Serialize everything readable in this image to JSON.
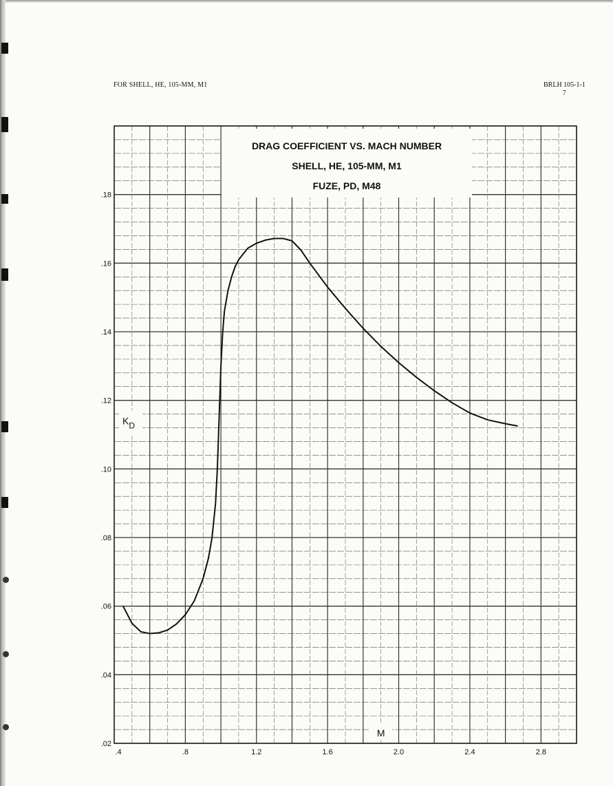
{
  "header": {
    "left": "FOR SHELL, HE, 105-MM, M1",
    "right_line1": "BRLH 105-1-1",
    "right_line2": "7"
  },
  "chart_data": {
    "type": "line",
    "title_lines": [
      "DRAG COEFFICIENT VS. MACH NUMBER",
      "SHELL, HE, 105-MM, M1",
      "FUZE, PD, M48"
    ],
    "xlabel": "M",
    "ylabel": "K",
    "ylabel_sub": "D",
    "xlim": [
      0.4,
      3.0
    ],
    "ylim": [
      0.02,
      0.2
    ],
    "x_ticks": [
      0.4,
      0.8,
      1.2,
      1.6,
      2.0,
      2.4,
      2.8
    ],
    "x_tick_labels": [
      ".4",
      ".8",
      "1.2",
      "1.6",
      "2.0",
      "2.4",
      "2.8"
    ],
    "y_ticks": [
      0.02,
      0.04,
      0.06,
      0.08,
      0.1,
      0.12,
      0.14,
      0.16,
      0.18
    ],
    "y_tick_labels": [
      ".02",
      ".04",
      ".06",
      ".08",
      ".10",
      ".12",
      ".14",
      ".16",
      ".18"
    ],
    "grid": true,
    "series": [
      {
        "x": [
          0.45,
          0.5,
          0.55,
          0.6,
          0.65,
          0.7,
          0.75,
          0.8,
          0.85,
          0.9,
          0.93,
          0.95,
          0.97,
          0.98,
          0.99,
          1.0,
          1.01,
          1.02,
          1.04,
          1.06,
          1.08,
          1.1,
          1.15,
          1.2,
          1.25,
          1.3,
          1.35,
          1.4,
          1.45,
          1.5,
          1.6,
          1.7,
          1.8,
          1.9,
          2.0,
          2.1,
          2.2,
          2.3,
          2.4,
          2.5,
          2.6,
          2.67
        ],
        "y": [
          0.06,
          0.055,
          0.0525,
          0.052,
          0.0522,
          0.053,
          0.0548,
          0.0575,
          0.0615,
          0.068,
          0.074,
          0.08,
          0.09,
          0.1,
          0.115,
          0.13,
          0.14,
          0.146,
          0.152,
          0.156,
          0.159,
          0.161,
          0.1643,
          0.1658,
          0.1667,
          0.1672,
          0.1672,
          0.1665,
          0.1638,
          0.16,
          0.153,
          0.1468,
          0.141,
          0.1357,
          0.131,
          0.1267,
          0.1228,
          0.1193,
          0.1163,
          0.1143,
          0.1132,
          0.1125
        ]
      }
    ]
  }
}
